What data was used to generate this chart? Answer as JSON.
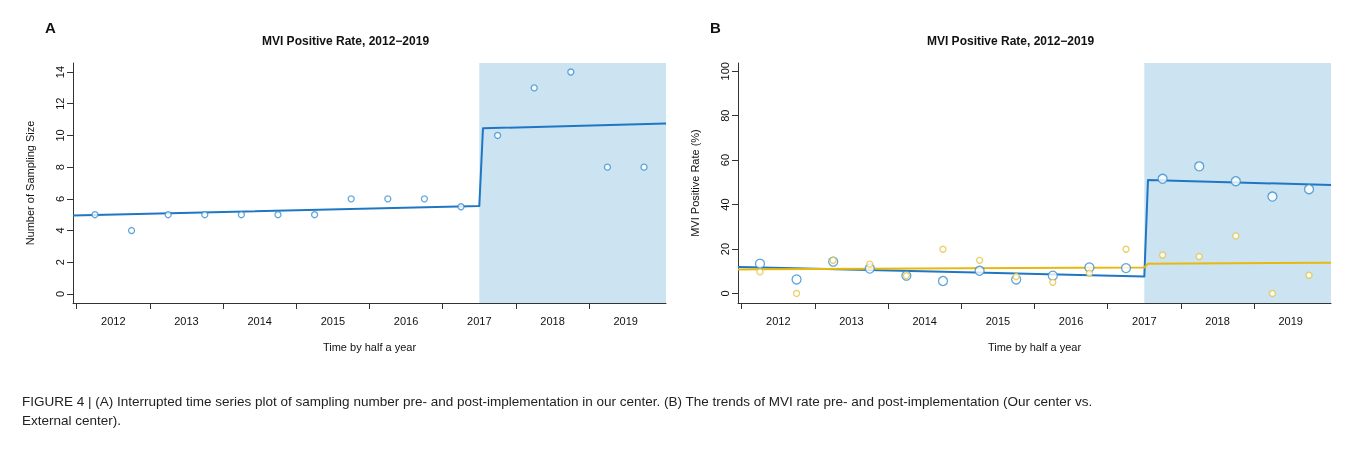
{
  "chart_data": [
    {
      "type": "scatter",
      "title": "MVI Positive Rate, 2012−2019",
      "xlabel": "Time by half a year",
      "ylabel": "Number of Sampling Size",
      "annotations": [
        "A",
        "FIGURE 4 | (A) Interrupted time series plot of sampling number pre- and post-implementation in our center. (B) The trends of MVI rate pre- and post-implementation (Our center vs. External center)."
      ],
      "x": [
        2011.75,
        2012.25,
        2012.75,
        2013.25,
        2013.75,
        2014.25,
        2014.75,
        2015.25,
        2015.75,
        2016.25,
        2016.75,
        2017.25,
        2017.75,
        2018.25,
        2018.75,
        2019.25
      ],
      "series": [
        {
          "color": "#3a8fd0",
          "values": [
            5,
            4,
            5,
            5,
            5,
            5,
            5,
            6,
            6,
            6,
            5.5,
            10,
            13,
            14,
            8,
            8
          ]
        },
        {
          "type": "line",
          "marker": "none",
          "color": "#1f77c4",
          "x": [
            2011.45,
            2017.0,
            2017.05,
            2019.55
          ],
          "values": [
            4.95,
            5.55,
            10.45,
            10.75
          ]
        }
      ],
      "xlim": [
        2011.45,
        2019.55
      ],
      "ylim": [
        -0.57,
        14.57
      ],
      "xticks": [
        {
          "value": 2011.5,
          "label": null
        },
        2012,
        {
          "value": 2012.5,
          "label": null
        },
        2013,
        {
          "value": 2013.5,
          "label": null
        },
        2014,
        {
          "value": 2014.5,
          "label": null
        },
        2015,
        {
          "value": 2015.5,
          "label": null
        },
        2016,
        {
          "value": 2016.5,
          "label": null
        },
        2017,
        {
          "value": 2017.5,
          "label": null
        },
        2018,
        {
          "value": 2018.5,
          "label": null
        },
        2019
      ],
      "yticks": [
        0,
        2,
        4,
        6,
        8,
        10,
        12,
        14
      ],
      "bands": [
        {
          "axis": "x",
          "from": 2017.0,
          "to": 2019.55,
          "color": "#cce3f1"
        }
      ],
      "grid": false,
      "marker": "circle",
      "line_style": "solid"
    },
    {
      "type": "scatter",
      "title": "MVI Positive Rate, 2012−2019",
      "xlabel": "Time by half a year",
      "ylabel": "MVI Positive Rate (%)",
      "annotations": [
        "B"
      ],
      "x": [
        2011.75,
        2012.25,
        2012.75,
        2013.25,
        2013.75,
        2014.25,
        2014.75,
        2015.25,
        2015.75,
        2016.25,
        2016.75,
        2017.25,
        2017.75,
        2018.25,
        2018.75,
        2019.25
      ],
      "series": [
        {
          "color": "#3a8fd0",
          "values": [
            13.4,
            6.3,
            14.3,
            11.2,
            8.0,
            5.6,
            10.2,
            6.3,
            8.0,
            11.7,
            11.4,
            51.6,
            57.2,
            50.5,
            43.6,
            46.9
          ]
        },
        {
          "color": "#e6c33c",
          "values": [
            9.7,
            0,
            14.9,
            13.2,
            8.0,
            19.9,
            14.9,
            7.6,
            5.0,
            9.1,
            19.9,
            17.3,
            16.6,
            25.9,
            0,
            8.2
          ]
        },
        {
          "type": "line",
          "marker": "none",
          "color": "#1f77c4",
          "x": [
            2011.45,
            2017.0,
            2017.05,
            2019.55
          ],
          "values": [
            11.9,
            7.6,
            51.0,
            48.8
          ]
        },
        {
          "type": "line",
          "marker": "none",
          "color": "#e8b80f",
          "x": [
            2011.45,
            2017.0,
            2017.05,
            2019.55
          ],
          "values": [
            10.8,
            11.7,
            13.4,
            13.8
          ]
        }
      ],
      "xlim": [
        2011.45,
        2019.55
      ],
      "ylim": [
        -4.3,
        103.7
      ],
      "xticks": [
        {
          "value": 2011.5,
          "label": null
        },
        2012,
        {
          "value": 2012.5,
          "label": null
        },
        2013,
        {
          "value": 2013.5,
          "label": null
        },
        2014,
        {
          "value": 2014.5,
          "label": null
        },
        2015,
        {
          "value": 2015.5,
          "label": null
        },
        2016,
        {
          "value": 2016.5,
          "label": null
        },
        2017,
        {
          "value": 2017.5,
          "label": null
        },
        2018,
        {
          "value": 2018.5,
          "label": null
        },
        2019
      ],
      "yticks": [
        0,
        20,
        40,
        60,
        80,
        100
      ],
      "bands": [
        {
          "axis": "x",
          "from": 2017.0,
          "to": 2019.55,
          "color": "#cce3f1"
        }
      ],
      "grid": false,
      "marker": "circle",
      "line_style": "solid"
    }
  ]
}
